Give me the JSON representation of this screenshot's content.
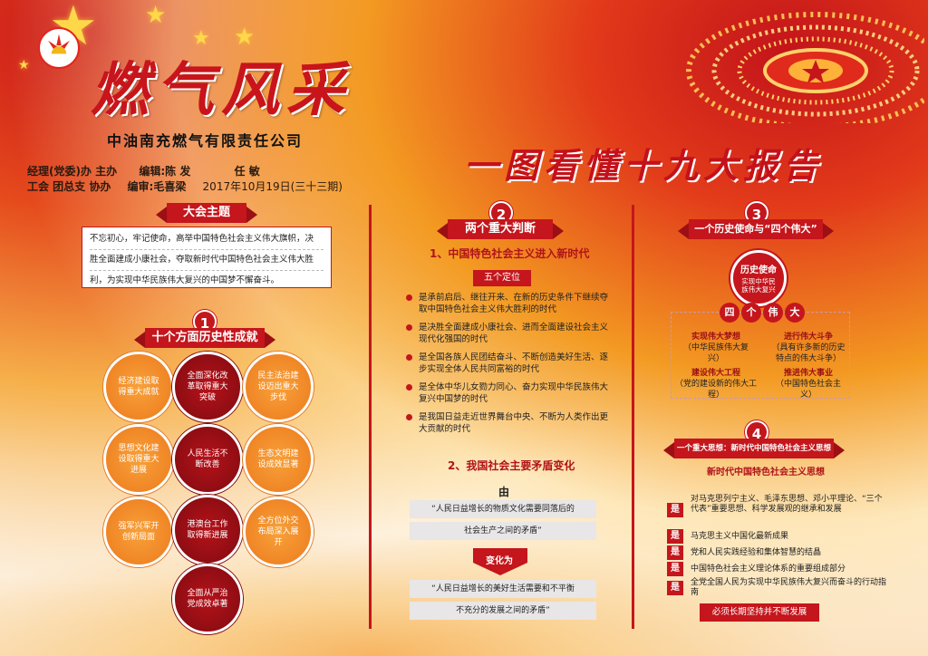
{
  "colors": {
    "primary_red": "#c4161c",
    "orange": "#ed7a1c",
    "gold": "#ffd84a"
  },
  "header": {
    "title": "燃气风采",
    "company": "中油南充燃气有限责任公司",
    "credits_line1": [
      "经理(党委)办 主办",
      "编辑:陈 发",
      "任 敏"
    ],
    "credits_line2": [
      "工会 团总支 协办",
      "编审:毛喜梁",
      "2017年10月19日(三十三期)"
    ],
    "logo_icon": "petrochina-logo-icon",
    "emblem_icon": "national-emblem-star-icon"
  },
  "main_heading": "一图看懂十九大报告",
  "theme": {
    "label": "大会主题",
    "lines": [
      "不忘初心，牢记使命，高举中国特色社会主义伟大旗帜，决",
      "胜全面建成小康社会，夺取新时代中国特色社会主义伟大胜",
      "利，为实现中华民族伟大复兴的中国梦不懈奋斗。"
    ]
  },
  "section1": {
    "number": "1",
    "title": "十个方面历史性成就",
    "items": [
      "经济建设取得重大成就",
      "全面深化改革取得重大突破",
      "民主法治建设迈出重大步伐",
      "思想文化建设取得重大进展",
      "人民生活不断改善",
      "生态文明建设成效显著",
      "强军兴军开创新局面",
      "港澳台工作取得新进展",
      "全方位外交布局深入展开",
      "全面从严治党成效卓著"
    ]
  },
  "section2": {
    "number": "2",
    "title": "两个重大判断",
    "sub1": "1、中国特色社会主义进入新时代",
    "pill": "五个定位",
    "bullets": [
      "是承前启后、继往开来、在新的历史条件下继续夺取中国特色社会主义伟大胜利的时代",
      "是决胜全面建成小康社会、进而全面建设社会主义现代化强国的时代",
      "是全国各族人民团结奋斗、不断创造美好生活、逐步实现全体人民共同富裕的时代",
      "是全体中华儿女勠力同心、奋力实现中华民族伟大复兴中国梦的时代",
      "是我国日益走近世界舞台中央、不断为人类作出更大贡献的时代"
    ],
    "sub2": "2、我国社会主要矛盾变化",
    "from_label": "由",
    "old_quote": [
      "“人民日益增长的物质文化需要同落后的",
      "社会生产之间的矛盾”"
    ],
    "change_label": "变化为",
    "new_quote": [
      "“人民日益增长的美好生活需要和不平衡",
      "不充分的发展之间的矛盾”"
    ]
  },
  "section3": {
    "number": "3",
    "title": "一个历史使命与“四个伟大”",
    "mission_label": "历史使命",
    "mission_text": "实现中华民族伟大复兴",
    "four_chars": [
      "四",
      "个",
      "伟",
      "大"
    ],
    "goals": [
      {
        "title": "实现伟大梦想",
        "desc": "（中华民族伟大复兴）"
      },
      {
        "title": "进行伟大斗争",
        "desc": "（具有许多新的历史特点的伟大斗争）"
      },
      {
        "title": "建设伟大工程",
        "desc": "（党的建设新的伟大工程）"
      },
      {
        "title": "推进伟大事业",
        "desc": "（中国特色社会主义）"
      }
    ]
  },
  "section4": {
    "number": "4",
    "title": "一个重大思想：新时代中国特色社会主义思想",
    "sub": "新时代中国特色社会主义思想",
    "marker": "是",
    "points": [
      "对马克思列宁主义、毛泽东思想、邓小平理论、“三个代表”重要思想、科学发展观的继承和发展",
      "马克思主义中国化最新成果",
      "党和人民实践经验和集体智慧的结晶",
      "中国特色社会主义理论体系的重要组成部分",
      "全党全国人民为实现中华民族伟大复兴而奋斗的行动指南"
    ],
    "footer": "必须长期坚持并不断发展"
  }
}
